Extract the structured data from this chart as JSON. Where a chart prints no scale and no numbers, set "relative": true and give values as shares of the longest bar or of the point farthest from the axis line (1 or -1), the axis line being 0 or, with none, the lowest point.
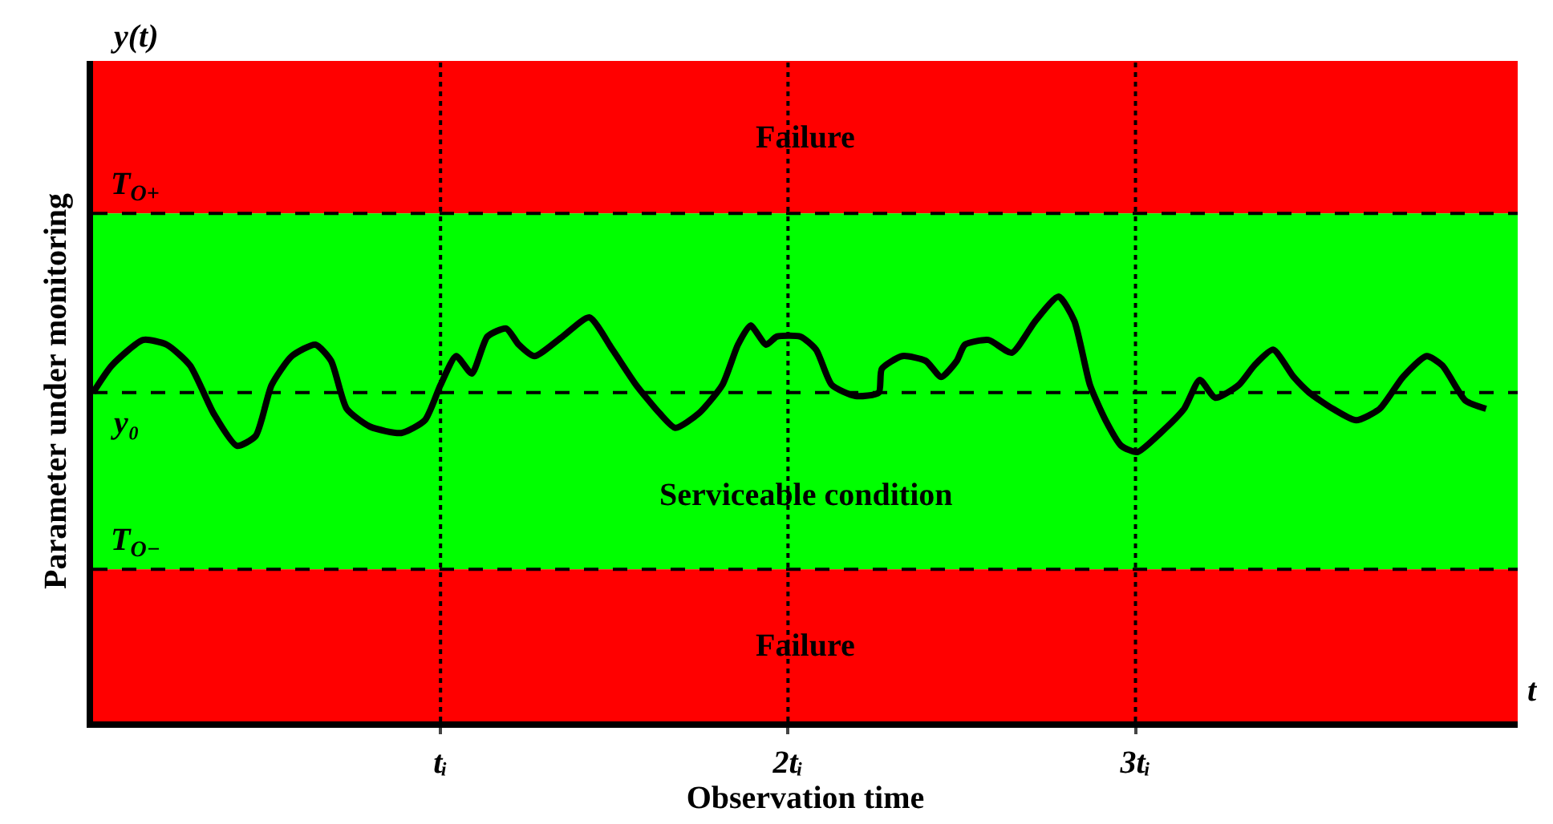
{
  "chart_data": {
    "type": "line",
    "relative": true,
    "xlabel": "Observation time",
    "ylabel": "Parameter under monitoring",
    "xlim": [
      0,
      4.1
    ],
    "xticks": [
      {
        "value": 1,
        "label": "tᵢ"
      },
      {
        "value": 2,
        "label": "2tᵢ"
      },
      {
        "value": 3,
        "label": "3tᵢ"
      }
    ],
    "tick_labels": "x",
    "grid": false,
    "marker": "none",
    "line_style": "solid",
    "series": [
      {
        "color": "#000000",
        "x": [
          0,
          0.054,
          0.144,
          0.212,
          0.279,
          0.347,
          0.414,
          0.468,
          0.514,
          0.572,
          0.64,
          0.685,
          0.73,
          0.797,
          0.887,
          0.955,
          1.0,
          1.045,
          1.09,
          1.135,
          1.189,
          1.225,
          1.27,
          1.351,
          1.428,
          1.495,
          1.563,
          1.631,
          1.676,
          1.743,
          1.811,
          1.856,
          1.892,
          1.937,
          1.968,
          2.036,
          2.081,
          2.126,
          2.194,
          2.261,
          2.27,
          2.329,
          2.396,
          2.441,
          2.486,
          2.509,
          2.577,
          2.644,
          2.712,
          2.779,
          2.824,
          2.869,
          2.914,
          2.959,
          3.005,
          3.072,
          3.14,
          3.185,
          3.23,
          3.297,
          3.342,
          3.396,
          3.455,
          3.5,
          3.568,
          3.635,
          3.703,
          3.77,
          3.838,
          3.883,
          3.95,
          4.009
        ],
        "values": [
          0.774,
          0.838,
          0.898,
          0.887,
          0.838,
          0.725,
          0.649,
          0.672,
          0.792,
          0.86,
          0.887,
          0.849,
          0.736,
          0.694,
          0.679,
          0.709,
          0.792,
          0.86,
          0.819,
          0.906,
          0.925,
          0.887,
          0.86,
          0.906,
          0.951,
          0.875,
          0.792,
          0.725,
          0.691,
          0.725,
          0.792,
          0.887,
          0.932,
          0.887,
          0.906,
          0.906,
          0.875,
          0.792,
          0.766,
          0.774,
          0.83,
          0.86,
          0.849,
          0.811,
          0.849,
          0.887,
          0.898,
          0.868,
          0.943,
          1.0,
          0.943,
          0.792,
          0.709,
          0.649,
          0.634,
          0.679,
          0.736,
          0.804,
          0.762,
          0.792,
          0.838,
          0.875,
          0.811,
          0.774,
          0.736,
          0.709,
          0.736,
          0.811,
          0.86,
          0.838,
          0.755,
          0.736
        ]
      }
    ],
    "bands": [
      {
        "axis": "y",
        "from": 1.196,
        "to": 1.555,
        "label": "Failure",
        "color": "#ff0000"
      },
      {
        "axis": "y",
        "from": 0.358,
        "to": 1.196,
        "label": "Serviceable condition",
        "color": "#00ff00"
      },
      {
        "axis": "y",
        "from": 0,
        "to": 0.358,
        "label": "Failure",
        "color": "#ff0000"
      }
    ],
    "ref_lines": [
      {
        "axis": "y",
        "value": 1.196,
        "label": "T$_{O+}$",
        "line_style": "dashed",
        "color": "#000000"
      },
      {
        "axis": "y",
        "value": 0.774,
        "label": "y₀",
        "line_style": "dashed",
        "color": "#000000"
      },
      {
        "axis": "y",
        "value": 0.358,
        "label": "T$_{O−}$",
        "line_style": "dashed",
        "color": "#000000"
      },
      {
        "axis": "x",
        "value": 1,
        "label": null,
        "line_style": "dotted",
        "color": "#000000"
      },
      {
        "axis": "x",
        "value": 2,
        "label": null,
        "line_style": "dotted",
        "color": "#000000"
      },
      {
        "axis": "x",
        "value": 3,
        "label": null,
        "line_style": "dotted",
        "color": "#000000"
      }
    ],
    "annotations": [
      "y(t)",
      "t"
    ]
  }
}
